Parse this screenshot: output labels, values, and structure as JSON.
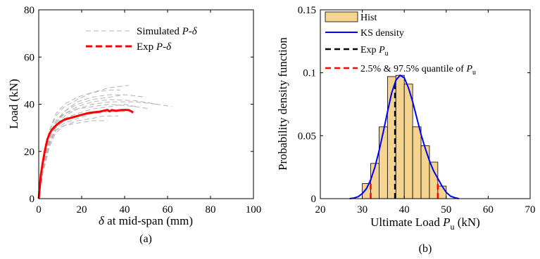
{
  "chart_data": [
    {
      "type": "line",
      "panel_label": "(a)",
      "xlabel": {
        "symbol": "δ",
        "text": " at mid-span (mm)"
      },
      "ylabel": "Load (kN)",
      "xlim": [
        0,
        100
      ],
      "ylim": [
        0,
        80
      ],
      "xticks": [
        "0",
        "20",
        "40",
        "60",
        "80",
        "100"
      ],
      "yticks": [
        "0",
        "20",
        "40",
        "60",
        "80"
      ],
      "legend": {
        "position": "top-center",
        "entries": [
          {
            "prefix": "Simulated ",
            "italic": "P",
            "suffix": "-δ",
            "color": "#b3b3b3",
            "style": "dashed"
          },
          {
            "prefix": "Exp ",
            "italic": "P",
            "suffix": "-δ",
            "color": "#ff0000",
            "style": "dashed-bold"
          }
        ]
      },
      "series": [
        {
          "role": "exp",
          "color": "#ff0000",
          "points": [
            [
              0,
              0
            ],
            [
              0.5,
              5
            ],
            [
              1,
              10
            ],
            [
              2,
              16
            ],
            [
              3,
              21
            ],
            [
              4,
              25
            ],
            [
              5,
              27.5
            ],
            [
              6,
              29
            ],
            [
              7,
              30
            ],
            [
              8,
              31
            ],
            [
              10,
              32.5
            ],
            [
              12,
              33.5
            ],
            [
              14,
              34
            ],
            [
              16,
              34.5
            ],
            [
              18,
              35
            ],
            [
              20,
              35.5
            ],
            [
              22,
              36
            ],
            [
              24,
              36.4
            ],
            [
              26,
              36.6
            ],
            [
              28,
              36.8
            ],
            [
              30,
              37.2
            ],
            [
              32,
              37.6
            ],
            [
              33,
              37.0
            ],
            [
              34,
              37.5
            ],
            [
              36,
              37.2
            ],
            [
              38,
              37.5
            ],
            [
              40,
              37.6
            ],
            [
              42,
              37.5
            ],
            [
              43,
              37
            ],
            [
              44,
              36.5
            ]
          ]
        }
      ],
      "simulated_curves": [
        [
          [
            0,
            0
          ],
          [
            2,
            14
          ],
          [
            5,
            26
          ],
          [
            8,
            33
          ],
          [
            12,
            37
          ],
          [
            18,
            40
          ],
          [
            25,
            42
          ],
          [
            33,
            43
          ],
          [
            40,
            44
          ]
        ],
        [
          [
            0,
            0
          ],
          [
            2,
            12
          ],
          [
            5,
            24
          ],
          [
            8,
            30
          ],
          [
            12,
            34
          ],
          [
            18,
            36
          ],
          [
            25,
            38
          ],
          [
            33,
            39
          ],
          [
            40,
            40
          ],
          [
            45,
            39
          ]
        ],
        [
          [
            0,
            0
          ],
          [
            2,
            15
          ],
          [
            5,
            28
          ],
          [
            8,
            35
          ],
          [
            12,
            39
          ],
          [
            18,
            42
          ],
          [
            25,
            45
          ],
          [
            33,
            47
          ],
          [
            42,
            48
          ]
        ],
        [
          [
            0,
            0
          ],
          [
            2,
            11
          ],
          [
            5,
            22
          ],
          [
            8,
            28
          ],
          [
            12,
            31
          ],
          [
            18,
            33
          ],
          [
            25,
            34
          ],
          [
            30,
            35
          ],
          [
            37,
            35
          ]
        ],
        [
          [
            0,
            0
          ],
          [
            2,
            13
          ],
          [
            5,
            25
          ],
          [
            8,
            31
          ],
          [
            12,
            35
          ],
          [
            18,
            38
          ],
          [
            25,
            40
          ],
          [
            33,
            41
          ],
          [
            45,
            41
          ],
          [
            55,
            40
          ]
        ],
        [
          [
            0,
            0
          ],
          [
            2,
            14
          ],
          [
            5,
            27
          ],
          [
            8,
            33
          ],
          [
            12,
            36
          ],
          [
            18,
            39
          ],
          [
            25,
            41
          ],
          [
            33,
            42
          ],
          [
            45,
            41.5
          ],
          [
            55,
            40
          ],
          [
            62,
            39
          ]
        ],
        [
          [
            0,
            0
          ],
          [
            2,
            12
          ],
          [
            5,
            23
          ],
          [
            8,
            29
          ],
          [
            12,
            32
          ],
          [
            18,
            34
          ],
          [
            25,
            36
          ],
          [
            33,
            37
          ],
          [
            40,
            37
          ]
        ],
        [
          [
            0,
            0
          ],
          [
            2,
            15
          ],
          [
            5,
            29
          ],
          [
            8,
            36
          ],
          [
            12,
            40
          ],
          [
            18,
            43
          ],
          [
            25,
            45
          ],
          [
            33,
            46
          ],
          [
            38,
            46
          ]
        ],
        [
          [
            0,
            0
          ],
          [
            2,
            13
          ],
          [
            5,
            26
          ],
          [
            8,
            32
          ],
          [
            12,
            36
          ],
          [
            18,
            38
          ],
          [
            25,
            39
          ],
          [
            33,
            40
          ],
          [
            45,
            39
          ],
          [
            52,
            38
          ]
        ],
        [
          [
            0,
            0
          ],
          [
            2,
            11
          ],
          [
            5,
            23
          ],
          [
            8,
            30
          ],
          [
            12,
            33
          ],
          [
            18,
            35
          ],
          [
            25,
            36
          ],
          [
            30,
            36.5
          ]
        ],
        [
          [
            0,
            0
          ],
          [
            2,
            14
          ],
          [
            5,
            26
          ],
          [
            8,
            32
          ],
          [
            12,
            37
          ],
          [
            18,
            41
          ],
          [
            25,
            43
          ],
          [
            33,
            44
          ],
          [
            40,
            44
          ],
          [
            50,
            43
          ]
        ],
        [
          [
            0,
            0
          ],
          [
            2,
            12
          ],
          [
            5,
            24
          ],
          [
            8,
            29
          ],
          [
            12,
            31
          ],
          [
            18,
            32
          ],
          [
            25,
            33
          ],
          [
            32,
            33
          ]
        ]
      ]
    },
    {
      "type": "bar",
      "panel_label": "(b)",
      "xlabel": {
        "text": "Ultimate Load ",
        "italic": "P",
        "sub": "u",
        "suffix": " (kN)"
      },
      "ylabel": "Probability density function",
      "xlim": [
        20,
        70
      ],
      "ylim": [
        0,
        0.15
      ],
      "xticks": [
        "20",
        "30",
        "40",
        "50",
        "60",
        "70"
      ],
      "yticks": [
        "0",
        "0.05",
        "0.1",
        "0.15"
      ],
      "legend": {
        "position": "top-left",
        "entries": [
          {
            "label": "Hist",
            "kind": "patch",
            "color": "#f5d48f"
          },
          {
            "label": "KS density",
            "kind": "line",
            "color": "#0000ff"
          },
          {
            "prefix": "Exp ",
            "italic": "P",
            "sub": "u",
            "kind": "line-dashed",
            "color": "#000000"
          },
          {
            "prefix": "2.5% & 97.5% quantile of ",
            "italic": "P",
            "sub": "u",
            "kind": "line-dashed",
            "color": "#ff0000"
          }
        ]
      },
      "bins": [
        {
          "x0": 30,
          "x1": 32,
          "value": 0.012
        },
        {
          "x0": 32,
          "x1": 34,
          "value": 0.028
        },
        {
          "x0": 34,
          "x1": 36,
          "value": 0.057
        },
        {
          "x0": 36,
          "x1": 38,
          "value": 0.097
        },
        {
          "x0": 38,
          "x1": 40,
          "value": 0.098
        },
        {
          "x0": 40,
          "x1": 42,
          "value": 0.091
        },
        {
          "x0": 42,
          "x1": 44,
          "value": 0.057
        },
        {
          "x0": 44,
          "x1": 46,
          "value": 0.042
        },
        {
          "x0": 46,
          "x1": 48,
          "value": 0.029
        },
        {
          "x0": 48,
          "x1": 50,
          "value": 0.01
        }
      ],
      "hist_color": "#f5d48f",
      "ks_density": {
        "color": "#0000ff",
        "points": [
          [
            27,
            0
          ],
          [
            28,
            0.0005
          ],
          [
            29,
            0.0015
          ],
          [
            30,
            0.004
          ],
          [
            31,
            0.008
          ],
          [
            32,
            0.015
          ],
          [
            33,
            0.025
          ],
          [
            34,
            0.038
          ],
          [
            35,
            0.053
          ],
          [
            36,
            0.069
          ],
          [
            37,
            0.084
          ],
          [
            38,
            0.094
          ],
          [
            39,
            0.098
          ],
          [
            40,
            0.096
          ],
          [
            41,
            0.088
          ],
          [
            42,
            0.077
          ],
          [
            43,
            0.064
          ],
          [
            44,
            0.051
          ],
          [
            45,
            0.04
          ],
          [
            46,
            0.03
          ],
          [
            47,
            0.022
          ],
          [
            48,
            0.016
          ],
          [
            49,
            0.01
          ],
          [
            50,
            0.005
          ],
          [
            51,
            0.002
          ],
          [
            52,
            0.0008
          ],
          [
            53,
            0
          ]
        ]
      },
      "exp_pu": {
        "x": 37.8,
        "color": "#000000"
      },
      "quantiles": {
        "x": [
          32.0,
          48.0
        ],
        "color": "#ff0000"
      }
    }
  ]
}
